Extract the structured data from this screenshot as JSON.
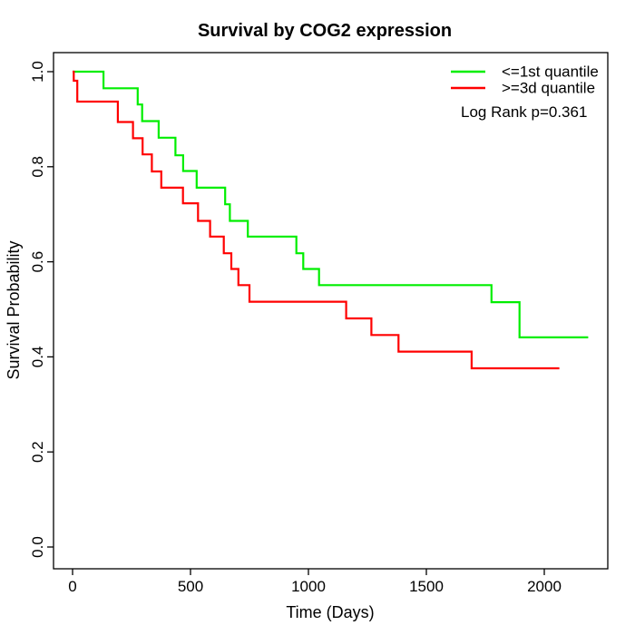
{
  "title": "Survival by COG2 expression",
  "axes": {
    "xlabel": "Time (Days)",
    "ylabel": "Survival Probability",
    "x_ticks": [
      "0",
      "500",
      "1000",
      "1500",
      "2000"
    ],
    "y_ticks": [
      "0.0",
      "0.2",
      "0.4",
      "0.6",
      "0.8",
      "1.0"
    ]
  },
  "legend": {
    "items": [
      {
        "label": "<=1st quantile",
        "color": "#00ee00"
      },
      {
        "label": ">=3d quantile",
        "color": "#ff0000"
      }
    ],
    "note": "Log Rank p=0.361"
  },
  "chart_data": {
    "type": "line",
    "subtype": "kaplan-meier-step-curves",
    "title": "Survival by COG2 expression",
    "xlabel": "Time (Days)",
    "ylabel": "Survival Probability",
    "xlim": [
      0,
      2250
    ],
    "ylim": [
      0.0,
      1.0
    ],
    "x_ticks": [
      0,
      500,
      1000,
      1500,
      2000
    ],
    "y_ticks": [
      0.0,
      0.2,
      0.4,
      0.6,
      0.8,
      1.0
    ],
    "grid": false,
    "legend_position": "top-right",
    "annotation": "Log Rank p=0.361",
    "series": [
      {
        "name": "<=1st quantile",
        "color": "#00ee00",
        "end_time": 2186,
        "points": [
          [
            0,
            1.0
          ],
          [
            131,
            0.965
          ],
          [
            276,
            0.931
          ],
          [
            295,
            0.896
          ],
          [
            365,
            0.861
          ],
          [
            436,
            0.824
          ],
          [
            469,
            0.791
          ],
          [
            526,
            0.756
          ],
          [
            647,
            0.721
          ],
          [
            667,
            0.686
          ],
          [
            743,
            0.653
          ],
          [
            949,
            0.618
          ],
          [
            978,
            0.585
          ],
          [
            1045,
            0.551
          ],
          [
            1776,
            0.515
          ],
          [
            1895,
            0.441
          ]
        ]
      },
      {
        "name": ">=3d quantile",
        "color": "#ff0000",
        "end_time": 2064,
        "points": [
          [
            0,
            1.0
          ],
          [
            5,
            0.981
          ],
          [
            20,
            0.937
          ],
          [
            192,
            0.894
          ],
          [
            256,
            0.86
          ],
          [
            297,
            0.826
          ],
          [
            336,
            0.79
          ],
          [
            376,
            0.756
          ],
          [
            468,
            0.723
          ],
          [
            532,
            0.686
          ],
          [
            583,
            0.653
          ],
          [
            641,
            0.618
          ],
          [
            673,
            0.585
          ],
          [
            703,
            0.551
          ],
          [
            750,
            0.516
          ],
          [
            1160,
            0.481
          ],
          [
            1267,
            0.446
          ],
          [
            1382,
            0.411
          ],
          [
            1692,
            0.376
          ]
        ]
      }
    ]
  }
}
